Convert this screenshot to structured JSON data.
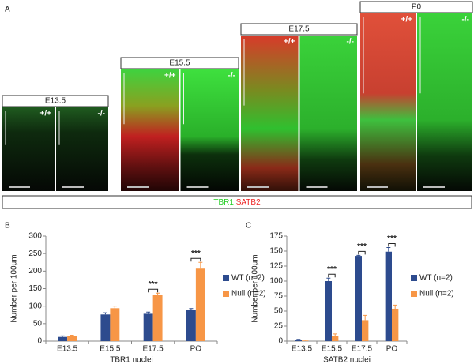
{
  "panel_a": {
    "label": "A",
    "stages": [
      {
        "label": "E13.5",
        "genotypes": [
          "+/+",
          "-/-"
        ]
      },
      {
        "label": "E15.5",
        "genotypes": [
          "+/+",
          "-/-"
        ]
      },
      {
        "label": "E17.5",
        "genotypes": [
          "+/+",
          "-/-"
        ]
      },
      {
        "label": "P0",
        "genotypes": [
          "+/+",
          "-/-"
        ]
      }
    ],
    "markers": [
      {
        "name": "TBR1",
        "color": "#22cc22"
      },
      {
        "name": "SATB2",
        "color": "#ee2222"
      }
    ]
  },
  "chart_data": [
    {
      "type": "bar",
      "panel_label": "B",
      "x_label": "TBR1 nuclei",
      "y_label": "Number per 100μm",
      "categories": [
        "E13.5",
        "E15.5",
        "E17.5",
        "PO"
      ],
      "series": [
        {
          "name": "WT (n=2)",
          "color": "#2d4b8e",
          "values": [
            12,
            76,
            78,
            88
          ],
          "errors": [
            3,
            5,
            5,
            5
          ]
        },
        {
          "name": "Null (n=2)",
          "color": "#f79646",
          "values": [
            14,
            94,
            131,
            207
          ],
          "errors": [
            3,
            6,
            6,
            18
          ]
        }
      ],
      "significance": [
        null,
        null,
        "***",
        "***"
      ],
      "ylim": [
        0,
        300
      ],
      "yticks": [
        0,
        50,
        100,
        150,
        200,
        250,
        300
      ]
    },
    {
      "type": "bar",
      "panel_label": "C",
      "x_label": "SATB2 nuclei",
      "y_label": "Number per 100μm",
      "categories": [
        "E13.5",
        "E15.5",
        "E17.5",
        "PO"
      ],
      "series": [
        {
          "name": "WT (n=2)",
          "color": "#2d4b8e",
          "values": [
            2,
            100,
            142,
            149
          ],
          "errors": [
            1,
            5,
            1,
            7
          ]
        },
        {
          "name": "Null (n=2)",
          "color": "#f79646",
          "values": [
            1,
            9,
            35,
            54
          ],
          "errors": [
            1,
            3,
            8,
            6
          ]
        }
      ],
      "significance": [
        null,
        "***",
        "***",
        "***"
      ],
      "ylim": [
        0,
        175
      ],
      "yticks": [
        0,
        25,
        50,
        75,
        100,
        125,
        150,
        175
      ]
    }
  ]
}
